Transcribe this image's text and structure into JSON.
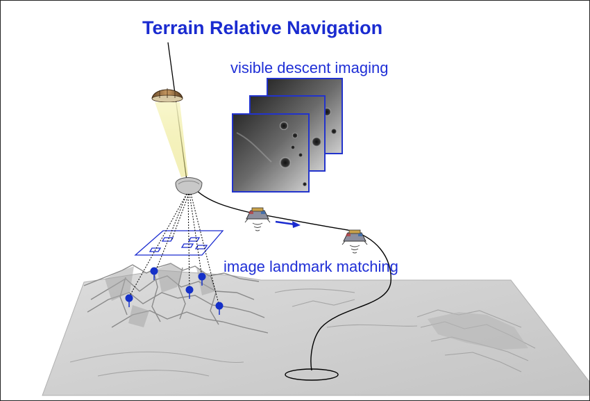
{
  "title": "Terrain Relative Navigation",
  "labels": {
    "descent_imaging": "visible descent imaging",
    "landmark_matching": "image landmark matching"
  },
  "colors": {
    "label_blue": "#1f2fd6",
    "title_blue": "#1a2bd0",
    "landmark_blue": "#1530c8",
    "outline": "#000000",
    "terrain_light": "#d6d6d6",
    "terrain_dark": "#8a8a8a",
    "beam_yellow": "#f3f0a0"
  },
  "icons": {
    "parachute": "parachute-icon",
    "backshell": "backshell-icon",
    "lander": "lander-icon",
    "landmark_pin": "landmark-pin-icon"
  }
}
